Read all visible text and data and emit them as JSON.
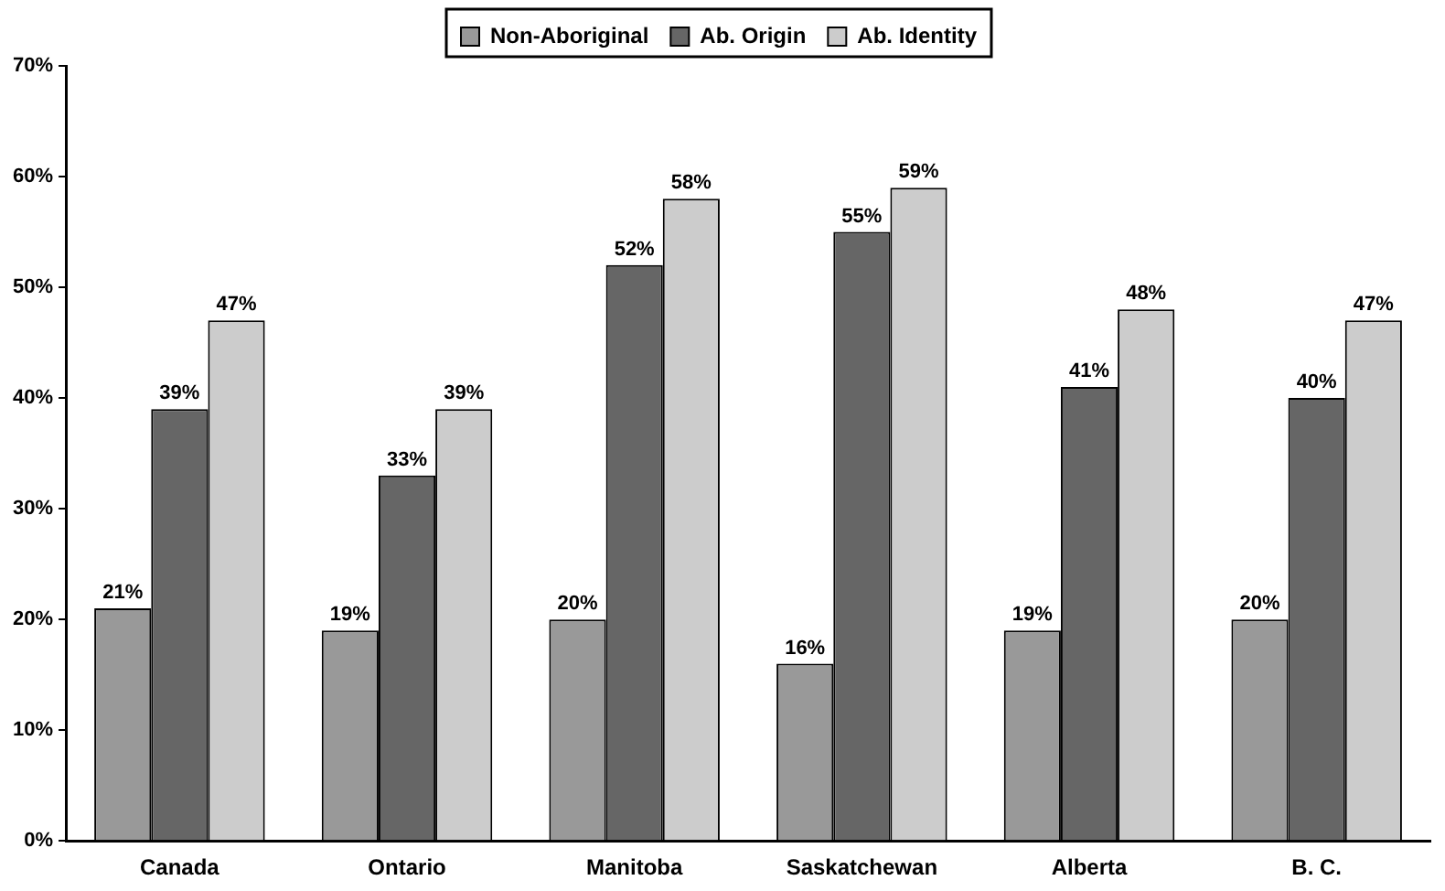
{
  "chart_data": {
    "type": "bar",
    "categories": [
      "Canada",
      "Ontario",
      "Manitoba",
      "Saskatchewan",
      "Alberta",
      "B. C."
    ],
    "series": [
      {
        "name": "Non-Aboriginal",
        "color": "#999999",
        "values": [
          21,
          19,
          20,
          16,
          19,
          20
        ],
        "value_labels": [
          "21%",
          "19%",
          "20%",
          "16%",
          "19%",
          "20%"
        ]
      },
      {
        "name": "Ab. Origin",
        "color": "#666666",
        "values": [
          39,
          33,
          52,
          55,
          41,
          40
        ],
        "value_labels": [
          "39%",
          "33%",
          "52%",
          "55%",
          "41%",
          "40%"
        ]
      },
      {
        "name": "Ab. Identity",
        "color": "#cccccc",
        "values": [
          47,
          39,
          58,
          59,
          48,
          47
        ],
        "value_labels": [
          "47%",
          "39%",
          "58%",
          "59%",
          "48%",
          "47%"
        ]
      }
    ],
    "ylim": [
      0,
      70
    ],
    "yticks": [
      {
        "value": 0,
        "label": "0%"
      },
      {
        "value": 10,
        "label": "10%"
      },
      {
        "value": 20,
        "label": "20%"
      },
      {
        "value": 30,
        "label": "30%"
      },
      {
        "value": 40,
        "label": "40%"
      },
      {
        "value": 50,
        "label": "50%"
      },
      {
        "value": 60,
        "label": "60%"
      },
      {
        "value": 70,
        "label": "70%"
      }
    ],
    "grid": false,
    "legend": "top"
  }
}
